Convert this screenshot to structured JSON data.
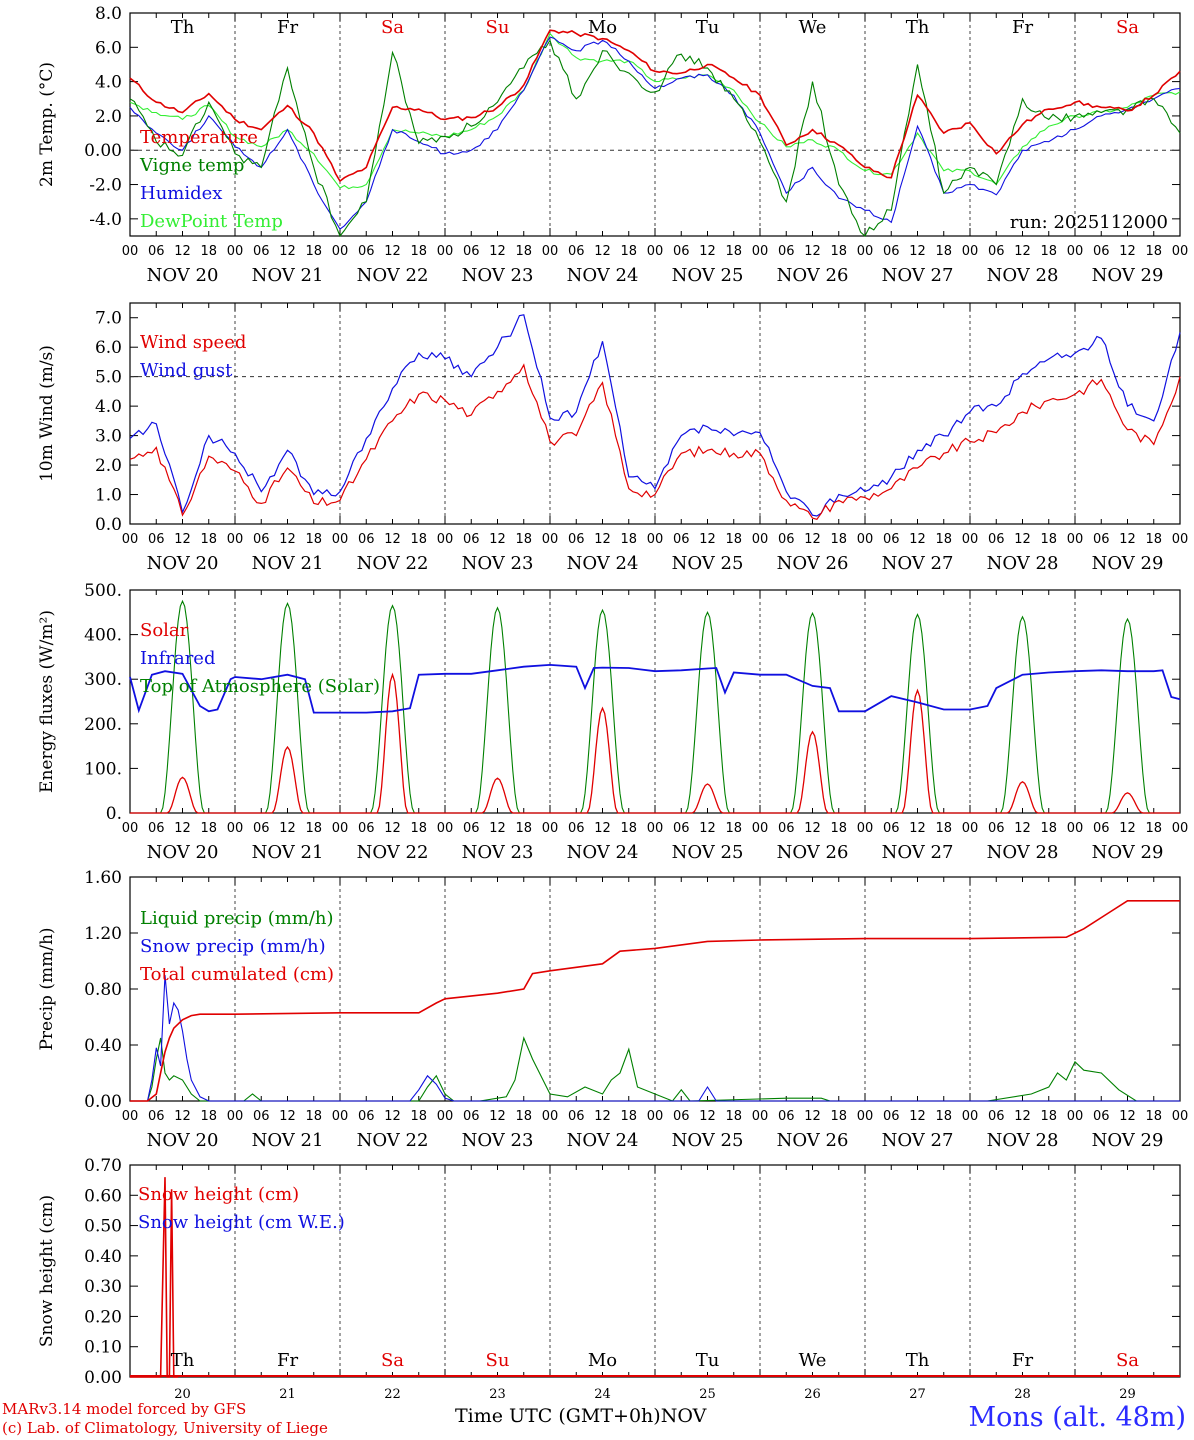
{
  "colors": {
    "red": "#e00000",
    "green": "#008000",
    "blue": "#1010e0",
    "lightgreen": "#33ee33",
    "weekend": "#e00000"
  },
  "days": [
    "Th",
    "Fr",
    "Sa",
    "Su",
    "Mo",
    "Tu",
    "We",
    "Th",
    "Fr",
    "Sa"
  ],
  "weekend_days": [
    2,
    3,
    9
  ],
  "date_labels": [
    "NOV 20",
    "NOV 21",
    "NOV 22",
    "NOV 23",
    "NOV 24",
    "NOV 25",
    "NOV 26",
    "NOV 27",
    "NOV 28",
    "NOV 29"
  ],
  "hour_ticks": [
    "00",
    "06",
    "12",
    "18"
  ],
  "hour_end": "00",
  "bottom_day_numbers": [
    "20",
    "21",
    "22",
    "23",
    "24",
    "25",
    "26",
    "27",
    "28",
    "29"
  ],
  "footer": {
    "model": "MARv3.14 model forced by GFS",
    "lab": "(c) Lab. of Climatology, University of Liege",
    "xlabel": "Time UTC (GMT+0h)",
    "month": "NOV",
    "station": "Mons (alt. 48m)"
  },
  "chart_data": [
    {
      "type": "line",
      "ylabel": "2m Temp. (°C)",
      "ylim": [
        -5,
        8
      ],
      "yticks": [
        "8.0",
        "6.0",
        "4.0",
        "2.0",
        "0.00",
        "-2.0",
        "-4.0"
      ],
      "ytick_values": [
        8,
        6,
        4,
        2,
        0,
        -2,
        -4
      ],
      "ref_line": 0,
      "annotation": "run: 2025112000",
      "x_hours": [
        0,
        6,
        12,
        18,
        24,
        30,
        36,
        42,
        48,
        54,
        60,
        66,
        72,
        78,
        84,
        90,
        96,
        102,
        108,
        114,
        120,
        126,
        132,
        138,
        144,
        150,
        156,
        162,
        168,
        174,
        180,
        186,
        192,
        198,
        204,
        210,
        216,
        222,
        228,
        234,
        240
      ],
      "series": [
        {
          "name": "Temperature",
          "color": "red",
          "values": [
            4.2,
            2.8,
            2.2,
            3.3,
            1.8,
            1.2,
            2.6,
            1.0,
            -1.8,
            -1.0,
            2.5,
            2.4,
            1.8,
            1.9,
            2.5,
            3.8,
            7.0,
            6.8,
            6.5,
            5.8,
            4.6,
            4.5,
            5.0,
            4.2,
            3.2,
            0.3,
            1.2,
            0.3,
            -1.0,
            -1.6,
            3.2,
            1.0,
            1.6,
            -0.2,
            1.5,
            2.4,
            2.8,
            2.5,
            2.3,
            3.2,
            4.6
          ]
        },
        {
          "name": "Vigne temp",
          "color": "green",
          "values": [
            3.0,
            0.5,
            -0.3,
            2.8,
            -0.2,
            -1.0,
            4.8,
            -1.0,
            -5.0,
            -3.0,
            5.7,
            0.4,
            0.8,
            1.4,
            2.8,
            4.8,
            6.4,
            3.0,
            5.8,
            4.5,
            3.4,
            5.6,
            4.8,
            3.0,
            0.5,
            -3.0,
            4.0,
            -2.0,
            -5.0,
            -3.5,
            5.0,
            -2.5,
            -1.0,
            -2.0,
            3.0,
            1.8,
            2.0,
            2.2,
            2.4,
            3.0,
            1.0
          ]
        },
        {
          "name": "Humidex",
          "color": "blue",
          "values": [
            2.5,
            1.0,
            0.0,
            2.0,
            0.2,
            -1.0,
            1.2,
            -2.0,
            -4.6,
            -3.0,
            1.2,
            0.5,
            -0.2,
            0.0,
            1.2,
            3.5,
            6.6,
            5.8,
            6.4,
            5.2,
            3.6,
            4.2,
            4.4,
            3.2,
            1.0,
            -2.5,
            -1.0,
            -2.8,
            -3.5,
            -4.2,
            1.4,
            -2.5,
            -2.0,
            -2.6,
            0.0,
            0.5,
            1.2,
            2.0,
            2.4,
            3.0,
            3.6
          ]
        },
        {
          "name": "DewPoint Temp",
          "color": "lightgreen",
          "values": [
            2.8,
            2.2,
            1.8,
            2.6,
            0.8,
            0.2,
            1.2,
            -0.2,
            -2.2,
            -2.0,
            1.2,
            1.0,
            0.8,
            1.2,
            2.0,
            3.5,
            6.8,
            5.4,
            5.2,
            5.2,
            4.0,
            4.2,
            4.4,
            3.5,
            1.6,
            0.2,
            0.6,
            0.0,
            -1.2,
            -1.4,
            1.0,
            -1.2,
            -1.2,
            -2.0,
            0.2,
            1.4,
            2.0,
            2.2,
            2.5,
            3.2,
            3.4
          ]
        }
      ]
    },
    {
      "type": "line",
      "ylabel": "10m Wind (m/s)",
      "ylim": [
        0,
        7.5
      ],
      "yticks": [
        "7.0",
        "6.0",
        "5.0",
        "4.0",
        "3.0",
        "2.0",
        "1.0",
        "0.0"
      ],
      "ytick_values": [
        7,
        6,
        5,
        4,
        3,
        2,
        1,
        0
      ],
      "ref_line": 5,
      "x_hours": [
        0,
        6,
        12,
        18,
        24,
        30,
        36,
        42,
        48,
        54,
        60,
        66,
        72,
        78,
        84,
        90,
        96,
        102,
        108,
        114,
        120,
        126,
        132,
        138,
        144,
        150,
        156,
        162,
        168,
        174,
        180,
        186,
        192,
        198,
        204,
        210,
        216,
        222,
        228,
        234,
        240
      ],
      "series": [
        {
          "name": "Wind speed",
          "color": "red",
          "values": [
            2.2,
            2.6,
            0.3,
            2.3,
            1.8,
            0.7,
            1.9,
            0.7,
            0.8,
            2.2,
            3.5,
            4.4,
            4.2,
            3.7,
            4.5,
            5.4,
            2.8,
            3.0,
            4.8,
            1.2,
            1.0,
            2.4,
            2.5,
            2.4,
            2.4,
            0.8,
            0.2,
            0.8,
            0.9,
            1.2,
            1.9,
            2.4,
            2.8,
            3.1,
            3.8,
            4.2,
            4.4,
            4.9,
            3.2,
            2.7,
            5.0
          ]
        },
        {
          "name": "Wind gust",
          "color": "blue",
          "values": [
            2.9,
            3.4,
            0.4,
            3.0,
            2.4,
            1.1,
            2.5,
            1.0,
            1.1,
            2.9,
            4.6,
            5.8,
            5.6,
            5.0,
            6.0,
            7.1,
            3.6,
            3.8,
            6.2,
            1.6,
            1.2,
            3.0,
            3.3,
            3.0,
            3.1,
            1.1,
            0.3,
            1.0,
            1.1,
            1.6,
            2.5,
            3.0,
            3.8,
            4.0,
            5.1,
            5.6,
            5.8,
            6.3,
            4.0,
            3.5,
            6.5
          ]
        }
      ]
    },
    {
      "type": "line",
      "ylabel": "Energy fluxes (W/m²)",
      "ylim": [
        0,
        500
      ],
      "yticks": [
        "500.",
        "400.",
        "300.",
        "200.",
        "100.",
        "0."
      ],
      "ytick_values": [
        500,
        400,
        300,
        200,
        100,
        0
      ],
      "infrared_hours": [
        0,
        2,
        5,
        8,
        12,
        16,
        18,
        20,
        23,
        24,
        30,
        36,
        40,
        42,
        48,
        54,
        60,
        64,
        66,
        72,
        78,
        84,
        90,
        96,
        102,
        104,
        106,
        108,
        114,
        120,
        126,
        132,
        134,
        136,
        138,
        144,
        150,
        156,
        160,
        162,
        168,
        174,
        180,
        186,
        192,
        196,
        198,
        204,
        210,
        216,
        222,
        228,
        234,
        236,
        238,
        240
      ],
      "infrared_values": [
        305,
        230,
        310,
        318,
        312,
        240,
        228,
        232,
        300,
        305,
        300,
        310,
        300,
        225,
        225,
        225,
        228,
        235,
        310,
        312,
        312,
        320,
        328,
        332,
        328,
        280,
        325,
        326,
        325,
        318,
        320,
        324,
        325,
        270,
        315,
        310,
        310,
        285,
        280,
        228,
        228,
        262,
        248,
        232,
        232,
        240,
        280,
        310,
        315,
        318,
        320,
        318,
        318,
        320,
        260,
        255
      ],
      "daily": {
        "toa_peak": [
          475,
          470,
          465,
          460,
          455,
          450,
          448,
          445,
          440,
          435
        ],
        "solar_peak": [
          80,
          148,
          310,
          78,
          235,
          65,
          182,
          275,
          70,
          45
        ],
        "solar_noon_hour": 12
      },
      "series": [
        {
          "name": "Solar",
          "color": "red"
        },
        {
          "name": "Infrared",
          "color": "blue"
        },
        {
          "name": "Top of Atmosphere (Solar)",
          "color": "green"
        }
      ]
    },
    {
      "type": "line",
      "ylabel": "Precip (mm/h)",
      "ylim": [
        0,
        1.6
      ],
      "yticks": [
        "1.60",
        "1.20",
        "0.80",
        "0.40",
        "0.00"
      ],
      "ytick_values": [
        1.6,
        1.2,
        0.8,
        0.4,
        0
      ],
      "cumulated_hours": [
        0,
        4,
        6,
        7,
        8,
        9,
        10,
        12,
        14,
        16,
        24,
        48,
        66,
        70,
        72,
        84,
        90,
        92,
        96,
        108,
        112,
        120,
        132,
        144,
        168,
        192,
        214,
        218,
        224,
        228,
        240
      ],
      "cumulated_values": [
        0,
        0,
        0.05,
        0.2,
        0.35,
        0.45,
        0.52,
        0.58,
        0.61,
        0.62,
        0.62,
        0.63,
        0.63,
        0.7,
        0.73,
        0.77,
        0.8,
        0.91,
        0.93,
        0.98,
        1.07,
        1.09,
        1.14,
        1.15,
        1.16,
        1.16,
        1.17,
        1.23,
        1.35,
        1.43,
        1.43
      ],
      "liquid_hours": [
        0,
        4,
        5,
        6,
        7,
        8,
        9,
        10,
        12,
        14,
        16,
        26,
        28,
        30,
        66,
        68,
        70,
        72,
        74,
        80,
        84,
        86,
        88,
        90,
        92,
        96,
        100,
        104,
        108,
        110,
        112,
        114,
        116,
        124,
        126,
        128,
        150,
        158,
        160,
        196,
        206,
        210,
        212,
        214,
        216,
        218,
        222,
        226,
        230,
        240
      ],
      "liquid_values": [
        0,
        0,
        0.1,
        0.3,
        0.45,
        0.2,
        0.15,
        0.18,
        0.15,
        0.05,
        0,
        0,
        0.05,
        0,
        0,
        0.1,
        0.18,
        0.05,
        0,
        0,
        0.02,
        0.03,
        0.15,
        0.45,
        0.3,
        0.05,
        0.03,
        0.1,
        0.05,
        0.15,
        0.2,
        0.37,
        0.1,
        0,
        0.08,
        0,
        0.02,
        0.02,
        0,
        0,
        0.05,
        0.1,
        0.2,
        0.15,
        0.28,
        0.22,
        0.2,
        0.08,
        0,
        0
      ],
      "snow_hours": [
        0,
        4,
        5,
        6,
        7,
        8,
        9,
        10,
        11,
        12,
        13,
        14,
        16,
        18,
        20,
        64,
        66,
        68,
        70,
        72,
        74,
        130,
        132,
        134,
        240
      ],
      "snow_values": [
        0,
        0,
        0.15,
        0.38,
        0.25,
        0.9,
        0.55,
        0.7,
        0.65,
        0.5,
        0.3,
        0.15,
        0.03,
        0,
        0,
        0,
        0.08,
        0.18,
        0.12,
        0.02,
        0,
        0,
        0.1,
        0,
        0
      ],
      "series": [
        {
          "name": "Liquid precip (mm/h)",
          "color": "green"
        },
        {
          "name": "Snow precip (mm/h)",
          "color": "blue"
        },
        {
          "name": "Total cumulated (cm)",
          "color": "red"
        }
      ]
    },
    {
      "type": "line",
      "ylabel": "Snow height (cm)",
      "ylim": [
        0,
        0.7
      ],
      "yticks": [
        "0.70",
        "0.60",
        "0.50",
        "0.40",
        "0.30",
        "0.20",
        "0.10",
        "0.00"
      ],
      "ytick_values": [
        0.7,
        0.6,
        0.5,
        0.4,
        0.3,
        0.2,
        0.1,
        0
      ],
      "snow_height_hours": [
        0,
        7,
        8,
        8.5,
        9,
        9.5,
        10,
        11
      ],
      "snow_height_values": [
        0,
        0,
        0.66,
        0,
        0,
        0.62,
        0,
        0
      ],
      "series": [
        {
          "name": "Snow height (cm)",
          "color": "red"
        },
        {
          "name": "Snow height (cm W.E.)",
          "color": "blue"
        }
      ]
    }
  ]
}
